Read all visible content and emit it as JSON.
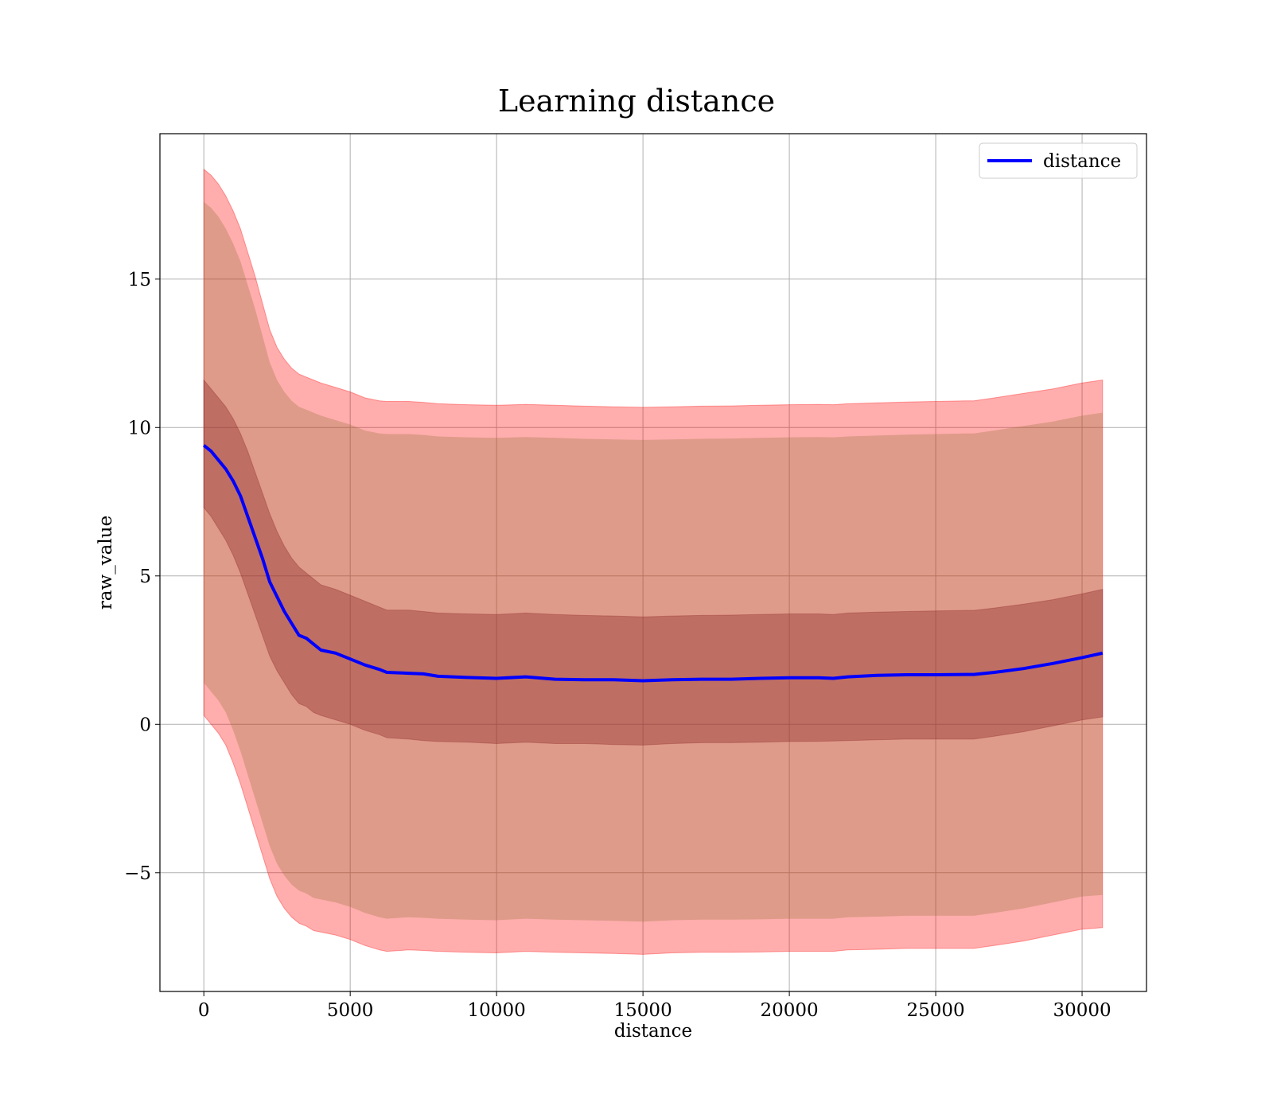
{
  "chart_data": {
    "type": "line",
    "title": "Learning distance",
    "xlabel": "distance",
    "ylabel": "raw_value",
    "xlim": [
      -1500,
      32200
    ],
    "ylim": [
      -9.0,
      19.9
    ],
    "grid": true,
    "legend_position": "top-right",
    "x_ticks": [
      0,
      5000,
      10000,
      15000,
      20000,
      25000,
      30000
    ],
    "y_ticks": [
      -5,
      0,
      5,
      10,
      15
    ],
    "x_tick_labels": [
      "0",
      "5000",
      "10000",
      "15000",
      "20000",
      "25000",
      "30000"
    ],
    "y_tick_labels": [
      "−5",
      "0",
      "5",
      "10",
      "15"
    ],
    "x": [
      0,
      250,
      500,
      750,
      1000,
      1250,
      1500,
      1750,
      2000,
      2250,
      2500,
      2750,
      3000,
      3250,
      3500,
      3750,
      4000,
      4500,
      5000,
      5500,
      6000,
      6250,
      7000,
      7500,
      8000,
      9000,
      10000,
      11000,
      12000,
      13000,
      14000,
      15000,
      16000,
      17000,
      18000,
      19000,
      20000,
      21000,
      21500,
      22000,
      23000,
      24000,
      25000,
      26000,
      26300,
      27000,
      28000,
      29000,
      30000,
      30700
    ],
    "series": [
      {
        "name": "distance",
        "color": "#0000ff",
        "values": [
          9.4,
          9.2,
          8.9,
          8.6,
          8.2,
          7.7,
          7.0,
          6.3,
          5.6,
          4.8,
          4.3,
          3.8,
          3.4,
          3.0,
          2.9,
          2.7,
          2.5,
          2.4,
          2.2,
          2.0,
          1.85,
          1.75,
          1.72,
          1.7,
          1.62,
          1.58,
          1.55,
          1.6,
          1.52,
          1.5,
          1.5,
          1.47,
          1.5,
          1.52,
          1.52,
          1.55,
          1.57,
          1.57,
          1.55,
          1.6,
          1.65,
          1.67,
          1.67,
          1.68,
          1.68,
          1.75,
          1.88,
          2.05,
          2.25,
          2.4
        ],
        "band_1sd": {
          "color": "#800020",
          "lower": [
            7.3,
            7.0,
            6.6,
            6.2,
            5.7,
            5.1,
            4.4,
            3.7,
            3.0,
            2.3,
            1.8,
            1.4,
            1.0,
            0.7,
            0.6,
            0.4,
            0.3,
            0.15,
            0.0,
            -0.2,
            -0.35,
            -0.45,
            -0.5,
            -0.55,
            -0.58,
            -0.6,
            -0.65,
            -0.6,
            -0.65,
            -0.65,
            -0.68,
            -0.7,
            -0.65,
            -0.62,
            -0.62,
            -0.6,
            -0.58,
            -0.57,
            -0.56,
            -0.55,
            -0.52,
            -0.5,
            -0.5,
            -0.5,
            -0.5,
            -0.4,
            -0.25,
            -0.05,
            0.15,
            0.25
          ],
          "upper": [
            11.6,
            11.3,
            11.0,
            10.7,
            10.3,
            9.8,
            9.2,
            8.5,
            7.8,
            7.1,
            6.5,
            6.0,
            5.6,
            5.3,
            5.1,
            4.9,
            4.7,
            4.55,
            4.35,
            4.15,
            3.95,
            3.85,
            3.85,
            3.8,
            3.75,
            3.72,
            3.7,
            3.75,
            3.7,
            3.67,
            3.65,
            3.62,
            3.65,
            3.67,
            3.68,
            3.7,
            3.72,
            3.72,
            3.7,
            3.75,
            3.78,
            3.8,
            3.82,
            3.84,
            3.84,
            3.92,
            4.05,
            4.2,
            4.4,
            4.55
          ]
        },
        "band_2sd": {
          "color": "#ff0000",
          "lower": [
            0.3,
            0.0,
            -0.3,
            -0.7,
            -1.3,
            -2.0,
            -2.8,
            -3.6,
            -4.4,
            -5.2,
            -5.8,
            -6.2,
            -6.5,
            -6.7,
            -6.8,
            -6.95,
            -7.0,
            -7.1,
            -7.25,
            -7.45,
            -7.6,
            -7.65,
            -7.6,
            -7.62,
            -7.65,
            -7.68,
            -7.7,
            -7.65,
            -7.68,
            -7.7,
            -7.72,
            -7.75,
            -7.7,
            -7.68,
            -7.68,
            -7.67,
            -7.65,
            -7.65,
            -7.65,
            -7.6,
            -7.58,
            -7.55,
            -7.55,
            -7.55,
            -7.55,
            -7.45,
            -7.3,
            -7.1,
            -6.9,
            -6.85
          ],
          "upper": [
            18.7,
            18.5,
            18.2,
            17.8,
            17.3,
            16.7,
            15.9,
            15.1,
            14.2,
            13.3,
            12.7,
            12.3,
            12.0,
            11.8,
            11.7,
            11.6,
            11.5,
            11.35,
            11.2,
            11.0,
            10.9,
            10.88,
            10.88,
            10.85,
            10.8,
            10.77,
            10.75,
            10.78,
            10.75,
            10.72,
            10.7,
            10.68,
            10.7,
            10.72,
            10.73,
            10.75,
            10.77,
            10.78,
            10.77,
            10.8,
            10.83,
            10.86,
            10.88,
            10.9,
            10.9,
            11.0,
            11.15,
            11.3,
            11.5,
            11.6
          ]
        }
      }
    ],
    "legend": [
      {
        "label": "distance",
        "color": "#0000ff"
      }
    ]
  }
}
